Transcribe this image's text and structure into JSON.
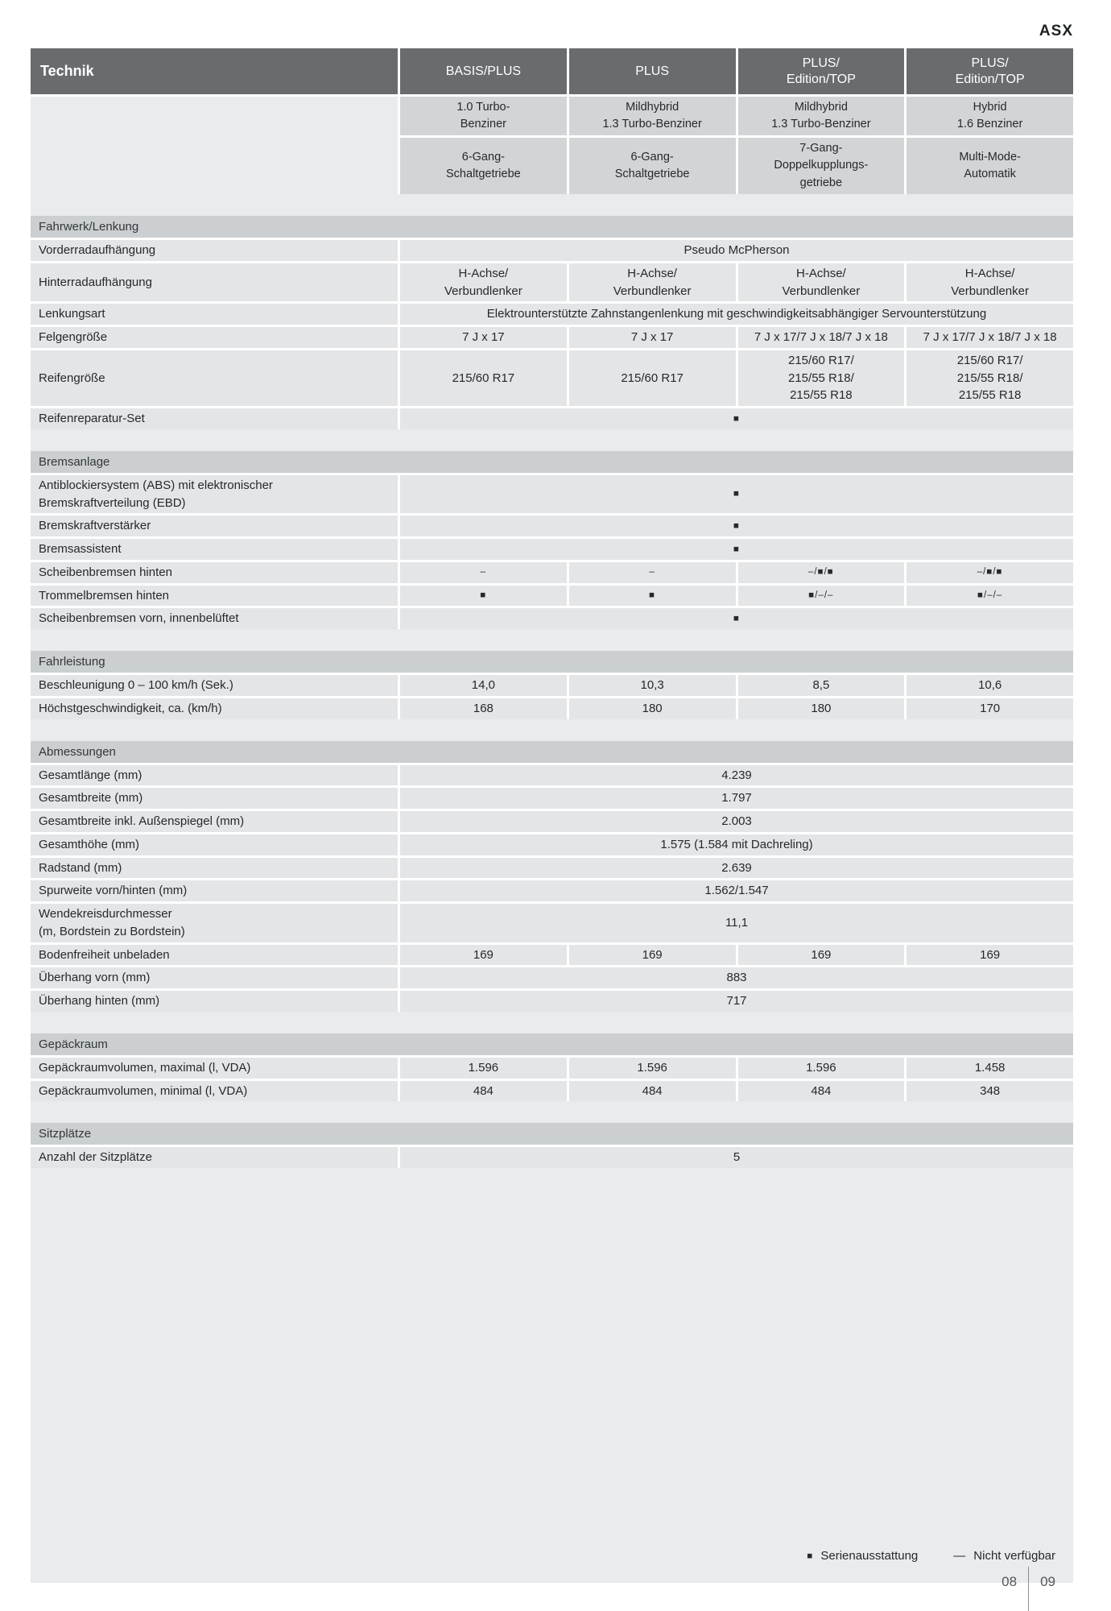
{
  "page": {
    "brand": "ASX",
    "page_number_left": "08",
    "page_number_right": "09"
  },
  "colors": {
    "header_bg": "#696c6e",
    "engine_cell_bg": "#d2d4d6",
    "section_band_bg": "#cbcfd1",
    "row_cell_bg": "#e3e5e7",
    "table_bg": "#e9ebec"
  },
  "legend": {
    "standard_symbol": "■",
    "standard_label": "Serienausstattung",
    "not_available_symbol": "—",
    "not_available_label": "Nicht verfügbar"
  },
  "table": {
    "header": {
      "label": "Technik",
      "columns": [
        "BASIS/PLUS",
        "PLUS",
        "PLUS/\nEdition/TOP",
        "PLUS/\nEdition/TOP"
      ]
    },
    "engine_row": [
      "1.0 Turbo-\nBenziner",
      "Mildhybrid\n1.3 Turbo-Benziner",
      "Mildhybrid\n1.3 Turbo-Benziner",
      "Hybrid\n1.6 Benziner"
    ],
    "transmission_row": [
      "6-Gang-\nSchaltgetriebe",
      "6-Gang-\nSchaltgetriebe",
      "7-Gang-\nDoppelkupplungs-\ngetriebe",
      "Multi-Mode-\nAutomatik"
    ],
    "sections": [
      {
        "title": "Fahrwerk/Lenkung",
        "rows": [
          {
            "label": "Vorderradaufhängung",
            "span": "Pseudo McPherson"
          },
          {
            "label": "Hinterradaufhängung",
            "cells": [
              "H-Achse/\nVerbundlenker",
              "H-Achse/\nVerbundlenker",
              "H-Achse/\nVerbundlenker",
              "H-Achse/\nVerbundlenker"
            ]
          },
          {
            "label": "Lenkungsart",
            "span": "Elektrounterstützte Zahnstangenlenkung mit geschwindigkeitsabhängiger Servounterstützung"
          },
          {
            "label": "Felgengröße",
            "cells": [
              "7 J x 17",
              "7 J x 17",
              "7 J x 17/7 J x 18/7 J x 18",
              "7 J x 17/7 J x 18/7 J x 18"
            ]
          },
          {
            "label": "Reifengröße",
            "cells": [
              "215/60 R17",
              "215/60 R17",
              "215/60 R17/\n215/55 R18/\n215/55 R18",
              "215/60 R17/\n215/55 R18/\n215/55 R18"
            ]
          },
          {
            "label": "Reifenreparatur-Set",
            "span": "■"
          }
        ]
      },
      {
        "title": "Bremsanlage",
        "rows": [
          {
            "label": "Antiblockiersystem (ABS) mit elektronischer\nBremskraftverteilung (EBD)",
            "span": "■"
          },
          {
            "label": "Bremskraftverstärker",
            "span": "■"
          },
          {
            "label": "Bremsassistent",
            "span": "■"
          },
          {
            "label": "Scheibenbremsen hinten",
            "cells": [
              "–",
              "–",
              "–/■/■",
              "–/■/■"
            ]
          },
          {
            "label": "Trommelbremsen hinten",
            "cells": [
              "■",
              "■",
              "■/–/–",
              "■/–/–"
            ]
          },
          {
            "label": "Scheibenbremsen vorn, innenbelüftet",
            "span": "■"
          }
        ]
      },
      {
        "title": "Fahrleistung",
        "rows": [
          {
            "label": "Beschleunigung 0 – 100 km/h (Sek.)",
            "cells": [
              "14,0",
              "10,3",
              "8,5",
              "10,6"
            ]
          },
          {
            "label": "Höchstgeschwindigkeit, ca. (km/h)",
            "cells": [
              "168",
              "180",
              "180",
              "170"
            ]
          }
        ]
      },
      {
        "title": "Abmessungen",
        "rows": [
          {
            "label": "Gesamtlänge (mm)",
            "span": "4.239"
          },
          {
            "label": "Gesamtbreite (mm)",
            "span": "1.797"
          },
          {
            "label": "Gesamtbreite inkl. Außenspiegel (mm)",
            "span": "2.003"
          },
          {
            "label": "Gesamthöhe (mm)",
            "span": "1.575 (1.584 mit Dachreling)"
          },
          {
            "label": "Radstand (mm)",
            "span": "2.639"
          },
          {
            "label": "Spurweite vorn/hinten (mm)",
            "span": "1.562/1.547"
          },
          {
            "label": "Wendekreisdurchmesser\n(m, Bordstein zu Bordstein)",
            "span": "11,1"
          },
          {
            "label": "Bodenfreiheit unbeladen",
            "cells": [
              "169",
              "169",
              "169",
              "169"
            ]
          },
          {
            "label": "Überhang vorn (mm)",
            "span": "883"
          },
          {
            "label": "Überhang hinten (mm)",
            "span": "717"
          }
        ]
      },
      {
        "title": "Gepäckraum",
        "rows": [
          {
            "label": "Gepäckraumvolumen, maximal (l, VDA)",
            "cells": [
              "1.596",
              "1.596",
              "1.596",
              "1.458"
            ]
          },
          {
            "label": "Gepäckraumvolumen, minimal (l, VDA)",
            "cells": [
              "484",
              "484",
              "484",
              "348"
            ]
          }
        ]
      },
      {
        "title": "Sitzplätze",
        "rows": [
          {
            "label": "Anzahl der Sitzplätze",
            "span": "5"
          }
        ]
      }
    ]
  }
}
